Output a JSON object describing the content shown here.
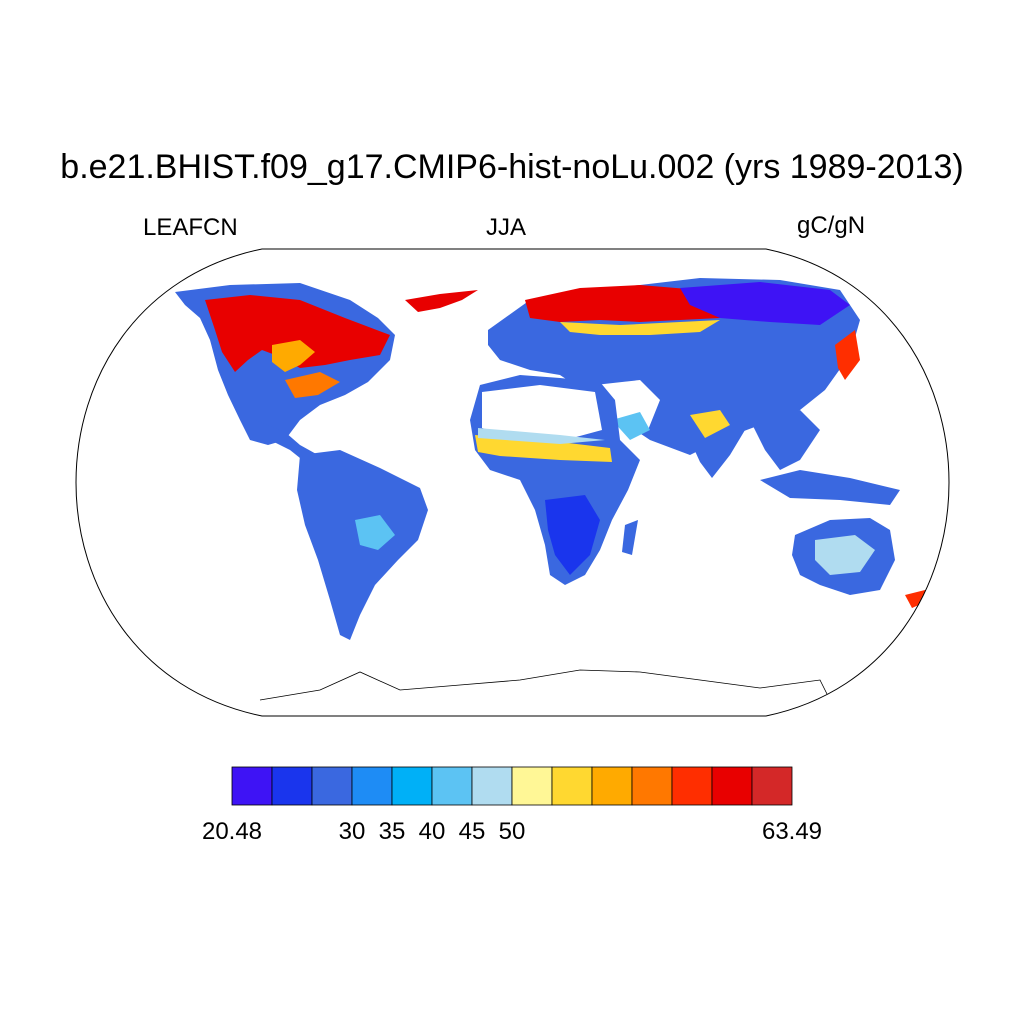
{
  "title": "b.e21.BHIST.f09_g17.CMIP6-hist-noLu.002 (yrs 1989-2013)",
  "subtitle_left": "LEAFCN",
  "subtitle_center": "JJA",
  "subtitle_right": "gC/gN",
  "colorbar": {
    "colors": [
      "#3e13f5",
      "#1a35ed",
      "#3a68e0",
      "#1e8cf5",
      "#00b0f7",
      "#5cc3f3",
      "#b0dcf0",
      "#fff796",
      "#ffd830",
      "#ffaa00",
      "#ff7800",
      "#ff2e00",
      "#e80000",
      "#d42828"
    ],
    "labels": [
      {
        "text": "20.48",
        "edge": 0
      },
      {
        "text": "30",
        "edge": 3
      },
      {
        "text": "35",
        "edge": 4
      },
      {
        "text": "40",
        "edge": 5
      },
      {
        "text": "45",
        "edge": 6
      },
      {
        "text": "50",
        "edge": 7
      },
      {
        "text": "63.49",
        "edge": 14
      }
    ]
  }
}
